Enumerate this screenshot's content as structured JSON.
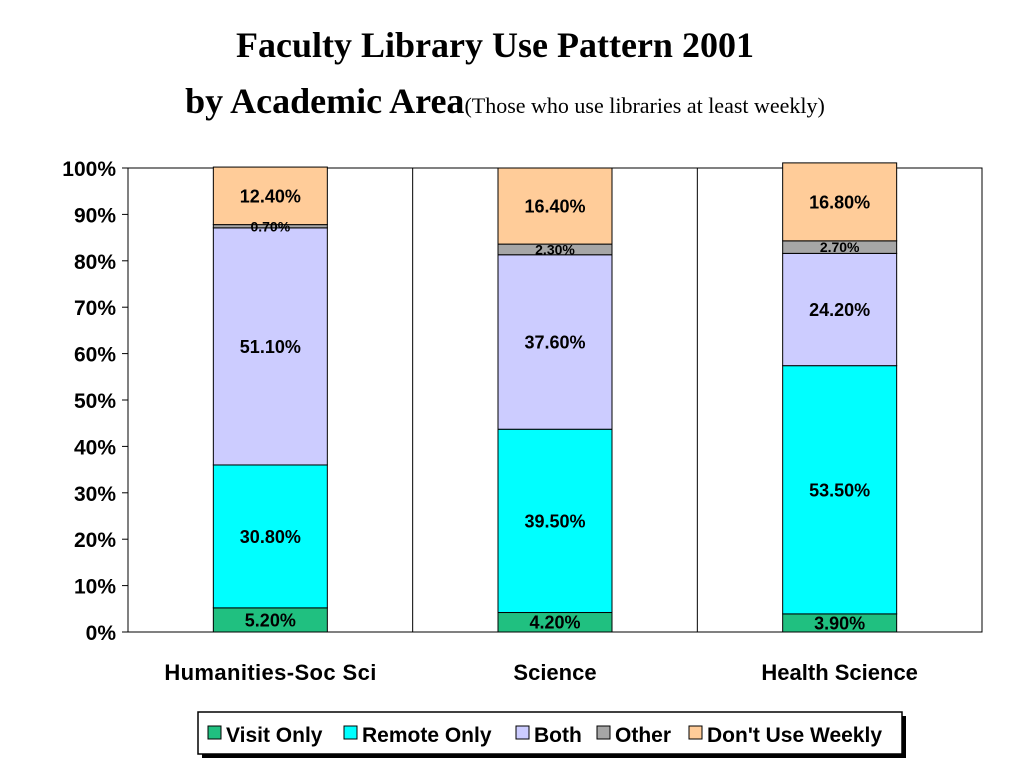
{
  "title": {
    "line1": "Faculty Library Use Pattern 2001",
    "line2": "by Academic Area",
    "subtitle": "(Those who use libraries at least weekly)"
  },
  "chart_data": {
    "type": "bar",
    "stacked": true,
    "categories": [
      "Humanities-Soc Sci",
      "Science",
      "Health Science"
    ],
    "series": [
      {
        "name": "Visit Only",
        "color": "#20c080",
        "values": [
          5.2,
          4.2,
          3.9
        ],
        "labels": [
          "5.20%",
          "4.20%",
          "3.90%"
        ]
      },
      {
        "name": "Remote Only",
        "color": "#00ffff",
        "values": [
          30.8,
          39.5,
          53.5
        ],
        "labels": [
          "30.80%",
          "39.50%",
          "53.50%"
        ]
      },
      {
        "name": "Both",
        "color": "#ccccff",
        "values": [
          51.1,
          37.6,
          24.2
        ],
        "labels": [
          "51.10%",
          "37.60%",
          "24.20%"
        ]
      },
      {
        "name": "Other",
        "color": "#a6a6a6",
        "values": [
          0.7,
          2.3,
          2.7
        ],
        "labels": [
          "0.70%",
          "2.30%",
          "2.70%"
        ]
      },
      {
        "name": "Don't Use Weekly",
        "color": "#ffcc99",
        "values": [
          12.4,
          16.4,
          16.8
        ],
        "labels": [
          "12.40%",
          "16.40%",
          "16.80%"
        ]
      }
    ],
    "yticks": [
      "0%",
      "10%",
      "20%",
      "30%",
      "40%",
      "50%",
      "60%",
      "70%",
      "80%",
      "90%",
      "100%"
    ],
    "ylim": [
      0,
      100
    ],
    "grid": "vertical-category-lines",
    "legend": "bottom"
  }
}
